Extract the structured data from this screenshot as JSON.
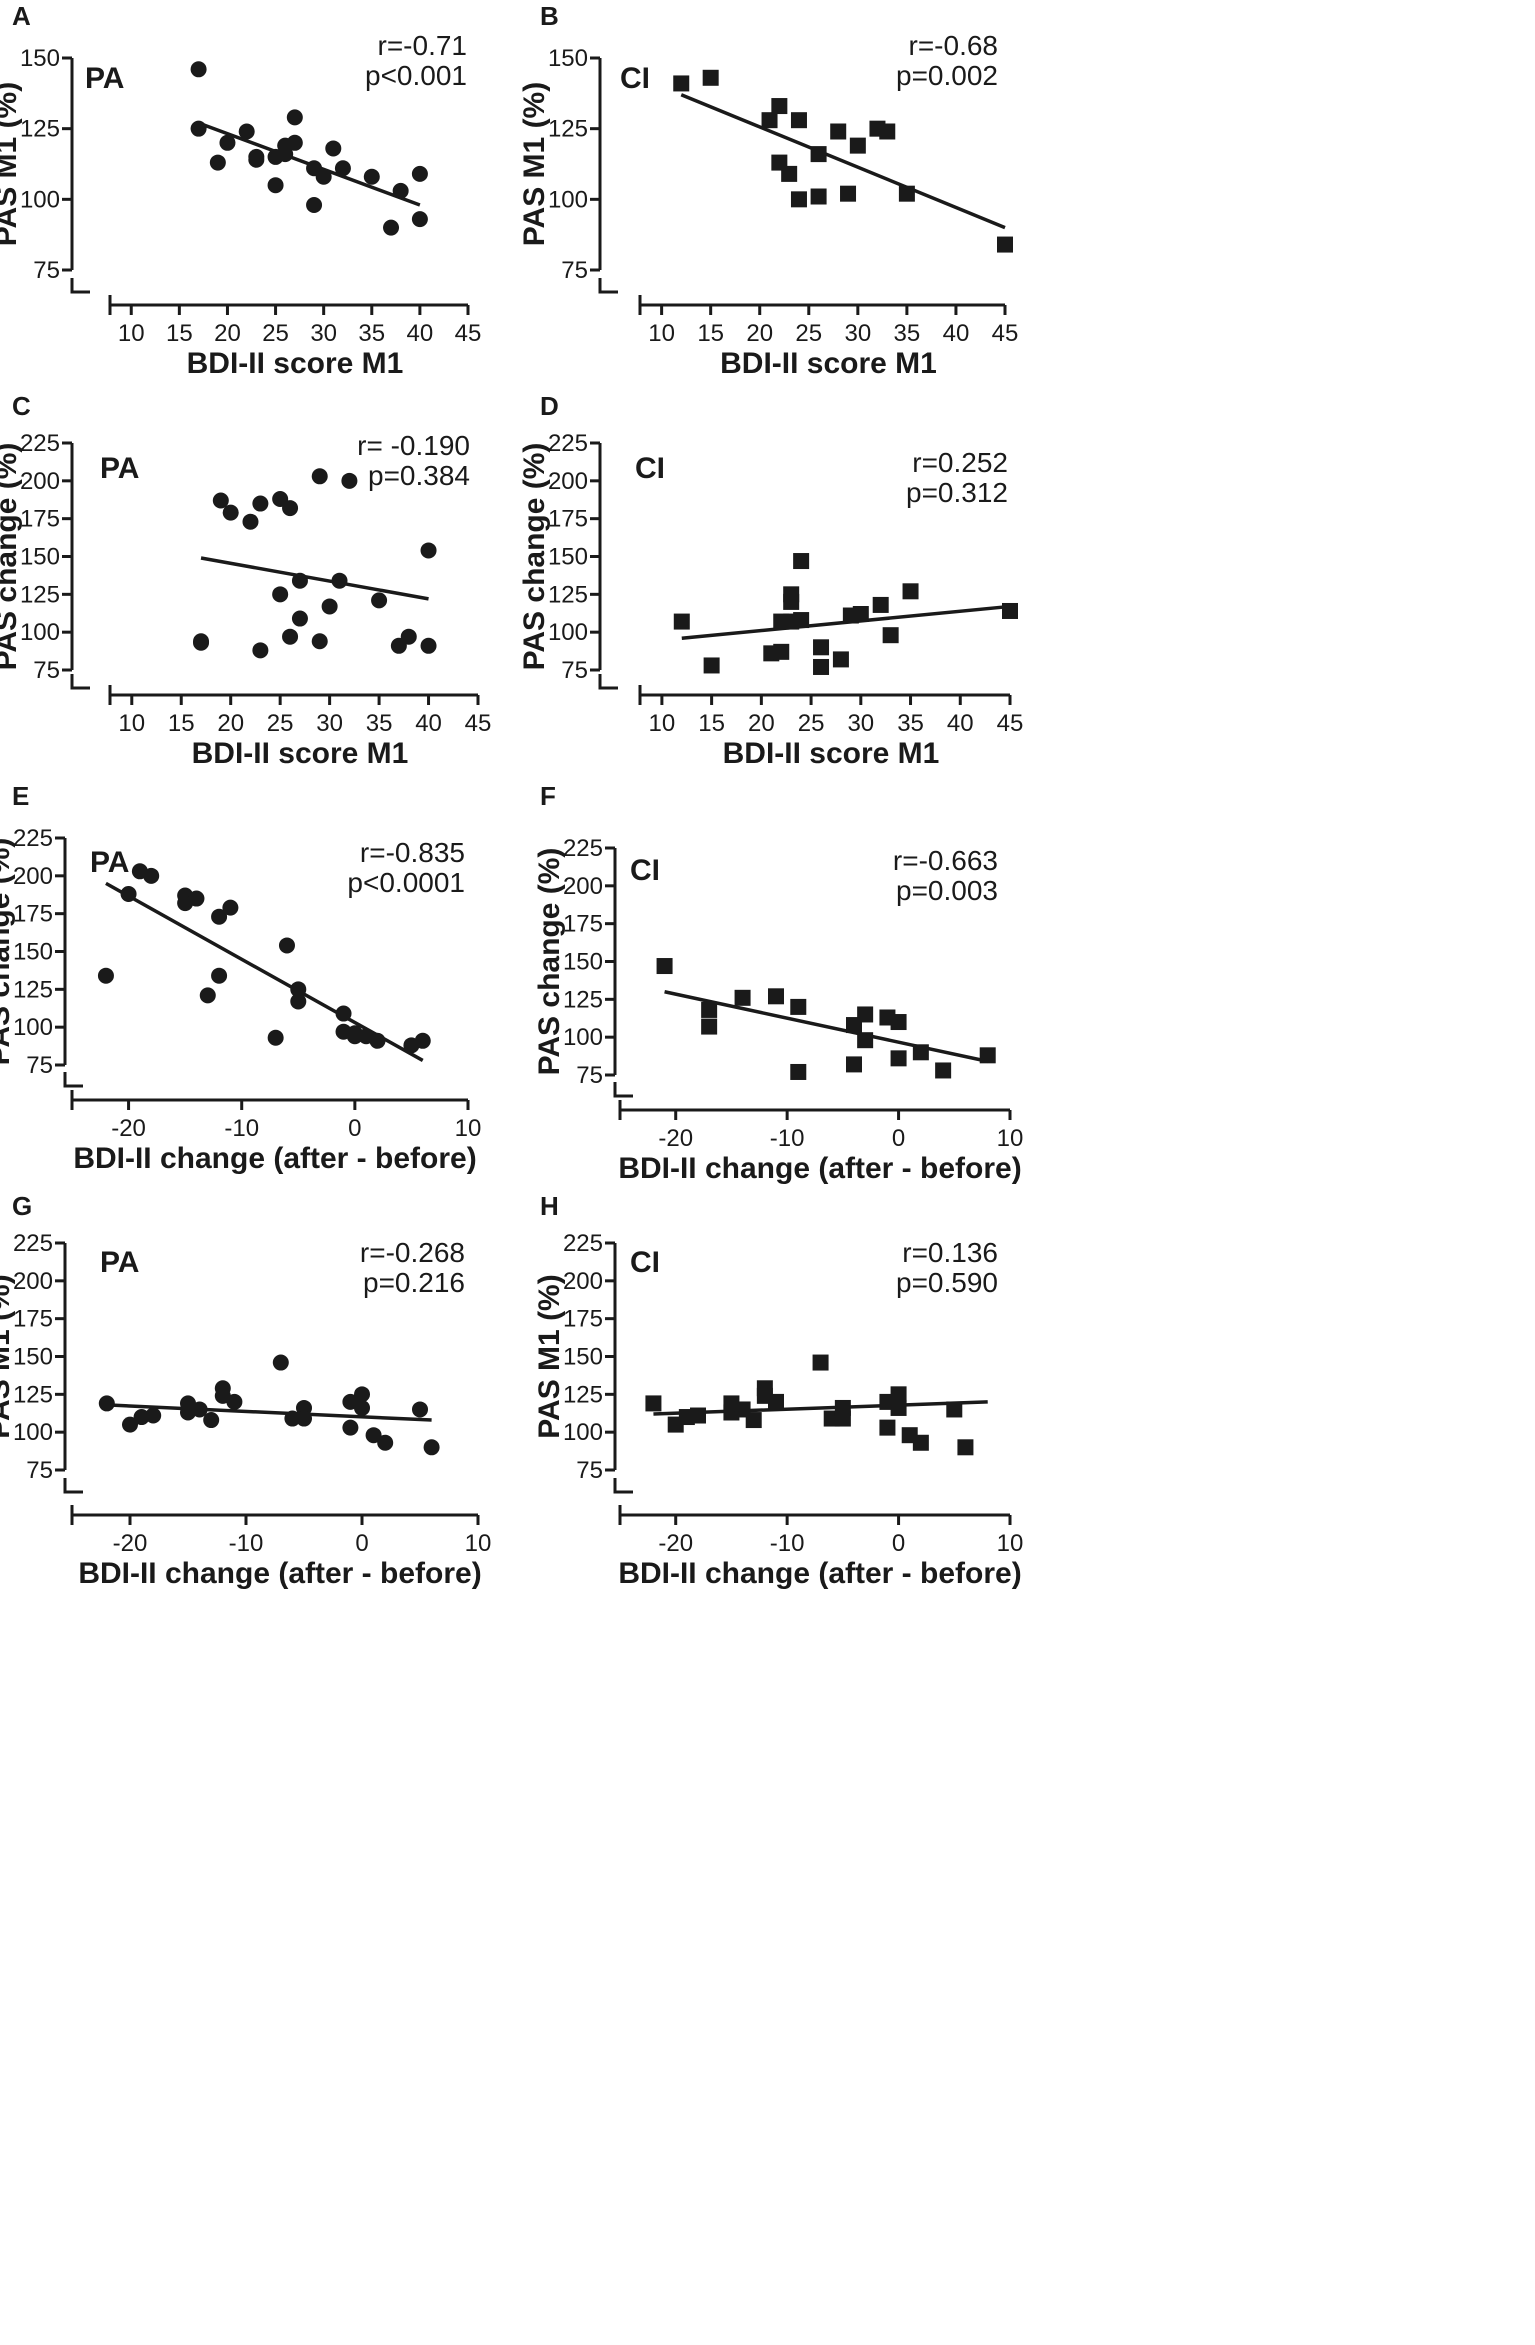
{
  "chart_data": [
    {
      "panel": "A",
      "type": "scatter",
      "group_label": "PA",
      "marker": "circle",
      "stat_r": "r=-0.71",
      "stat_p": "p<0.001",
      "xlabel": "BDI-II score M1",
      "ylabel": "PAS M1 (%)",
      "xlim": [
        8,
        45
      ],
      "ylim": [
        75,
        150
      ],
      "xticks": [
        10,
        15,
        20,
        25,
        30,
        35,
        40,
        45
      ],
      "yticks": [
        75,
        100,
        125,
        150
      ],
      "x": [
        17,
        17,
        19,
        20,
        22,
        23,
        23,
        25,
        25,
        26,
        26,
        27,
        27,
        29,
        29,
        30,
        31,
        32,
        35,
        37,
        38,
        40,
        40
      ],
      "y": [
        146,
        125,
        113,
        120,
        124,
        115,
        114,
        105,
        115,
        119,
        116,
        129,
        120,
        111,
        98,
        108,
        118,
        111,
        108,
        90,
        103,
        109,
        93
      ],
      "fit": [
        [
          17,
          127
        ],
        [
          40,
          98
        ]
      ]
    },
    {
      "panel": "B",
      "type": "scatter",
      "group_label": "CI",
      "marker": "square",
      "stat_r": "r=-0.68",
      "stat_p": "p=0.002",
      "xlabel": "BDI-II score M1",
      "ylabel": "PAS M1 (%)",
      "xlim": [
        8,
        45
      ],
      "ylim": [
        75,
        150
      ],
      "xticks": [
        10,
        15,
        20,
        25,
        30,
        35,
        40,
        45
      ],
      "yticks": [
        75,
        100,
        125,
        150
      ],
      "x": [
        12,
        15,
        21,
        22,
        22,
        23,
        24,
        24,
        26,
        26,
        28,
        29,
        30,
        32,
        33,
        35,
        45
      ],
      "y": [
        141,
        143,
        128,
        133,
        113,
        109,
        100,
        128,
        116,
        101,
        124,
        102,
        119,
        125,
        124,
        102,
        84
      ],
      "fit": [
        [
          12,
          137
        ],
        [
          45,
          90
        ]
      ]
    },
    {
      "panel": "C",
      "type": "scatter",
      "group_label": "PA",
      "marker": "circle",
      "stat_r": "r= -0.190",
      "stat_p": "p=0.384",
      "xlabel": "BDI-II score M1",
      "ylabel": "PAS change (%)",
      "xlim": [
        8,
        45
      ],
      "ylim": [
        75,
        225
      ],
      "xticks": [
        10,
        15,
        20,
        25,
        30,
        35,
        40,
        45
      ],
      "yticks": [
        75,
        100,
        125,
        150,
        175,
        200,
        225
      ],
      "x": [
        17,
        17,
        19,
        20,
        22,
        23,
        23,
        25,
        25,
        26,
        26,
        27,
        27,
        29,
        29,
        30,
        31,
        32,
        35,
        37,
        38,
        40,
        40
      ],
      "y": [
        94,
        93,
        187,
        179,
        173,
        185,
        88,
        188,
        125,
        182,
        97,
        134,
        109,
        203,
        94,
        117,
        134,
        200,
        121,
        91,
        97,
        154,
        91
      ],
      "fit": [
        [
          17,
          149
        ],
        [
          40,
          122
        ]
      ]
    },
    {
      "panel": "D",
      "type": "scatter",
      "group_label": "CI",
      "marker": "square",
      "stat_r": "r=0.252",
      "stat_p": "p=0.312",
      "xlabel": "BDI-II score M1",
      "ylabel": "PAS change (%)",
      "xlim": [
        8,
        45
      ],
      "ylim": [
        75,
        225
      ],
      "xticks": [
        10,
        15,
        20,
        25,
        30,
        35,
        40,
        45
      ],
      "yticks": [
        75,
        100,
        125,
        150,
        175,
        200,
        225
      ],
      "x": [
        12,
        15,
        21,
        22,
        22,
        23,
        23,
        23,
        24,
        24,
        26,
        26,
        28,
        29,
        30,
        32,
        33,
        35,
        45
      ],
      "y": [
        107,
        78,
        86,
        87,
        107,
        125,
        120,
        107,
        147,
        108,
        77,
        90,
        82,
        111,
        112,
        118,
        98,
        127,
        114
      ],
      "fit": [
        [
          12,
          96
        ],
        [
          45,
          117
        ]
      ]
    },
    {
      "panel": "E",
      "type": "scatter",
      "group_label": "PA",
      "marker": "circle",
      "stat_r": "r=-0.835",
      "stat_p": "p<0.0001",
      "xlabel": "BDI-II change (after - before)",
      "ylabel": "PAS change (%)",
      "xlim": [
        -25,
        10
      ],
      "ylim": [
        75,
        225
      ],
      "xticks": [
        -20,
        -10,
        0,
        10
      ],
      "yticks": [
        75,
        100,
        125,
        150,
        175,
        200,
        225
      ],
      "x": [
        -22,
        -20,
        -19,
        -18,
        -15,
        -15,
        -14,
        -12,
        -12,
        -11,
        -13,
        -7,
        -6,
        -5,
        -5,
        -1,
        -1,
        0,
        0,
        1,
        2,
        5,
        6
      ],
      "y": [
        134,
        188,
        203,
        200,
        187,
        182,
        185,
        173,
        134,
        179,
        121,
        93,
        154,
        125,
        117,
        109,
        97,
        96,
        94,
        94,
        91,
        88,
        91
      ],
      "fit": [
        [
          -22,
          195
        ],
        [
          6,
          78
        ]
      ]
    },
    {
      "panel": "F",
      "type": "scatter",
      "group_label": "CI",
      "marker": "square",
      "stat_r": "r=-0.663",
      "stat_p": "p=0.003",
      "xlabel": "BDI-II change (after - before)",
      "ylabel": "PAS change (%)",
      "xlim": [
        -25,
        10
      ],
      "ylim": [
        75,
        225
      ],
      "xticks": [
        -20,
        -10,
        0,
        10
      ],
      "yticks": [
        75,
        100,
        125,
        150,
        175,
        200,
        225
      ],
      "x": [
        -21,
        -17,
        -17,
        -14,
        -11,
        -9,
        -9,
        -4,
        -4,
        -3,
        -3,
        -1,
        0,
        0,
        2,
        4,
        8
      ],
      "y": [
        147,
        118,
        107,
        126,
        127,
        120,
        77,
        108,
        82,
        98,
        115,
        113,
        110,
        86,
        90,
        78,
        88
      ],
      "fit": [
        [
          -21,
          130
        ],
        [
          8,
          84
        ]
      ]
    },
    {
      "panel": "G",
      "type": "scatter",
      "group_label": "PA",
      "marker": "circle",
      "stat_r": "r=-0.268",
      "stat_p": "p=0.216",
      "xlabel": "BDI-II change (after - before)",
      "ylabel": "PAS M1 (%)",
      "xlim": [
        -25,
        10
      ],
      "ylim": [
        75,
        225
      ],
      "xticks": [
        -20,
        -10,
        0,
        10
      ],
      "yticks": [
        75,
        100,
        125,
        150,
        175,
        200,
        225
      ],
      "x": [
        -22,
        -20,
        -19,
        -18,
        -15,
        -15,
        -14,
        -13,
        -12,
        -12,
        -11,
        -7,
        -6,
        -5,
        -5,
        -1,
        -1,
        0,
        0,
        1,
        2,
        5,
        6
      ],
      "y": [
        119,
        105,
        110,
        111,
        113,
        119,
        115,
        108,
        129,
        124,
        120,
        146,
        109,
        116,
        109,
        120,
        103,
        125,
        116,
        98,
        93,
        115,
        90
      ],
      "fit": [
        [
          -22,
          118
        ],
        [
          6,
          108
        ]
      ]
    },
    {
      "panel": "H",
      "type": "scatter",
      "group_label": "CI",
      "marker": "square",
      "stat_r": "r=0.136",
      "stat_p": "p=0.590",
      "xlabel": "BDI-II change (after - before)",
      "ylabel": "PAS M1 (%)",
      "xlim": [
        -25,
        10
      ],
      "ylim": [
        75,
        225
      ],
      "xticks": [
        -20,
        -10,
        0,
        10
      ],
      "yticks": [
        75,
        100,
        125,
        150,
        175,
        200,
        225
      ],
      "x": [
        -22,
        -20,
        -19,
        -18,
        -15,
        -15,
        -14,
        -13,
        -12,
        -12,
        -11,
        -7,
        -6,
        -5,
        -5,
        -1,
        -1,
        0,
        0,
        1,
        2,
        5,
        6
      ],
      "y": [
        119,
        105,
        110,
        111,
        113,
        119,
        115,
        108,
        129,
        124,
        120,
        146,
        109,
        116,
        109,
        120,
        103,
        125,
        116,
        98,
        93,
        115,
        90
      ],
      "fit": [
        [
          -22,
          112
        ],
        [
          8,
          120
        ]
      ]
    }
  ]
}
